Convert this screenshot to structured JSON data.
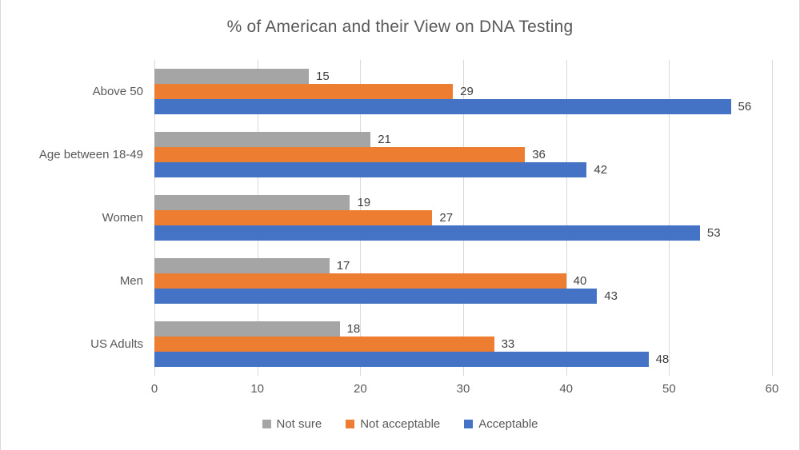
{
  "window": {
    "background": "#ffffff",
    "border_color": "#d9d9d9"
  },
  "chart_data": {
    "type": "bar",
    "orientation": "horizontal",
    "title": "% of American and their View on DNA Testing",
    "categories": [
      "Above 50",
      "Age between 18-49",
      "Women",
      "Men",
      "US Adults"
    ],
    "series": [
      {
        "name": "Not sure",
        "color": "#a5a5a5",
        "values": [
          15,
          21,
          19,
          17,
          18
        ]
      },
      {
        "name": "Not acceptable",
        "color": "#ed7d31",
        "values": [
          29,
          36,
          27,
          40,
          33
        ]
      },
      {
        "name": "Acceptable",
        "color": "#4472c4",
        "values": [
          56,
          42,
          53,
          43,
          48
        ]
      }
    ],
    "xlabel": "",
    "ylabel": "",
    "x_axis": {
      "min": 0,
      "max": 60,
      "tick_interval": 10,
      "tick_labels": [
        "0",
        "10",
        "20",
        "30",
        "40",
        "50",
        "60"
      ]
    },
    "grid": true,
    "gridline_color": "#d9d9d9",
    "legend_position": "bottom",
    "title_color": "#595959",
    "axis_text_color": "#595959",
    "value_label_color": "#404040",
    "data_labels": true
  }
}
